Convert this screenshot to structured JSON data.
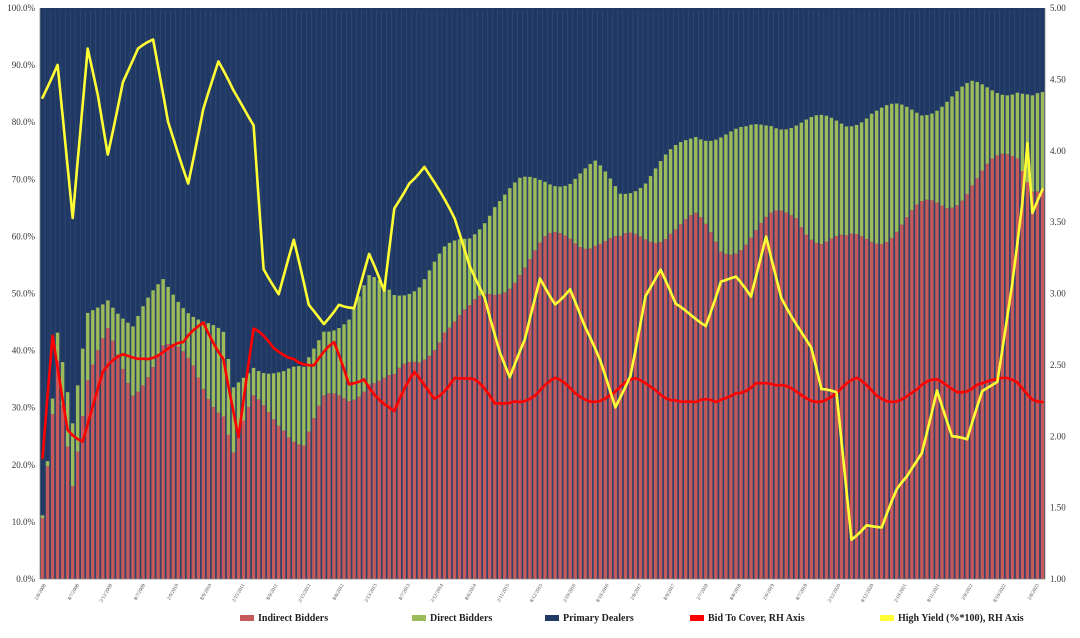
{
  "chart_data": {
    "type": "bar",
    "stacked": true,
    "percent_stacked": true,
    "grid": false,
    "legend_position": "bottom",
    "left_axis": {
      "ylim": [
        0,
        100
      ],
      "ticks": [
        "0.0%",
        "10.0%",
        "20.0%",
        "30.0%",
        "40.0%",
        "50.0%",
        "60.0%",
        "70.0%",
        "80.0%",
        "90.0%",
        "100.0%"
      ]
    },
    "right_axis": {
      "ylim": [
        1.0,
        5.0
      ],
      "ticks": [
        "1.00",
        "1.50",
        "2.00",
        "2.50",
        "3.00",
        "3.50",
        "4.00",
        "4.50",
        "5.00"
      ]
    },
    "x_tick_labels": [
      "2/8/2008",
      "8/7/2008",
      "2/12/2009",
      "8/7/2009",
      "2/9/2010",
      "8/9/2010",
      "2/15/2011",
      "8/9/2011",
      "2/15/2012",
      "8/8/2012",
      "2/13/2013",
      "8/7/2013",
      "2/12/2014",
      "8/6/2014",
      "2/11/2015",
      "8/12/2015",
      "2/10/2016",
      "8/10/2016",
      "2/8/2017",
      "8/9/2017",
      "2/7/2018",
      "8/8/2018",
      "2/6/2019",
      "8/7/2019",
      "2/12/2020",
      "8/12/2020",
      "2/10/2021",
      "8/11/2021",
      "2/9/2022",
      "8/10/2022",
      "2/8/2023"
    ],
    "series": [
      {
        "name": "Indirect Bidders",
        "type": "bar",
        "axis": "left",
        "color": "#c65a5a",
        "anchors": [
          [
            0,
            10
          ],
          [
            3,
            40
          ],
          [
            6,
            18
          ],
          [
            9,
            34
          ],
          [
            13,
            42
          ],
          [
            18,
            34
          ],
          [
            24,
            40
          ],
          [
            30,
            37
          ],
          [
            36,
            30
          ],
          [
            38,
            22
          ],
          [
            42,
            30
          ],
          [
            48,
            28
          ],
          [
            52,
            24
          ],
          [
            56,
            30
          ],
          [
            61,
            32
          ],
          [
            65,
            36
          ],
          [
            70,
            34
          ],
          [
            75,
            38
          ],
          [
            80,
            45
          ],
          [
            85,
            46
          ],
          [
            90,
            50
          ],
          [
            95,
            55
          ],
          [
            100,
            58
          ],
          [
            105,
            60
          ],
          [
            110,
            60
          ],
          [
            115,
            58
          ],
          [
            120,
            60
          ],
          [
            125,
            62
          ],
          [
            130,
            62
          ],
          [
            135,
            58
          ],
          [
            140,
            60
          ],
          [
            145,
            62
          ],
          [
            150,
            64
          ],
          [
            155,
            60
          ],
          [
            160,
            58
          ],
          [
            165,
            60
          ],
          [
            170,
            62
          ],
          [
            175,
            64
          ],
          [
            180,
            66
          ],
          [
            185,
            70
          ],
          [
            190,
            72
          ],
          [
            194,
            74
          ],
          [
            197,
            70
          ]
        ]
      },
      {
        "name": "Direct Bidders",
        "type": "bar",
        "axis": "left",
        "color": "#9cbb5a",
        "anchors": [
          [
            0,
            1
          ],
          [
            2,
            2
          ],
          [
            3,
            3
          ],
          [
            6,
            8
          ],
          [
            9,
            12
          ],
          [
            13,
            8
          ],
          [
            18,
            10
          ],
          [
            24,
            12
          ],
          [
            30,
            10
          ],
          [
            36,
            12
          ],
          [
            42,
            8
          ],
          [
            48,
            8
          ],
          [
            52,
            12
          ],
          [
            56,
            14
          ],
          [
            61,
            14
          ],
          [
            65,
            16
          ],
          [
            70,
            16
          ],
          [
            75,
            14
          ],
          [
            80,
            12
          ],
          [
            85,
            14
          ],
          [
            90,
            16
          ],
          [
            95,
            14
          ],
          [
            100,
            12
          ],
          [
            105,
            10
          ],
          [
            110,
            12
          ],
          [
            115,
            10
          ],
          [
            120,
            10
          ],
          [
            125,
            12
          ],
          [
            130,
            16
          ],
          [
            135,
            20
          ],
          [
            140,
            18
          ],
          [
            145,
            18
          ],
          [
            150,
            16
          ],
          [
            155,
            20
          ],
          [
            160,
            22
          ],
          [
            165,
            22
          ],
          [
            170,
            20
          ],
          [
            175,
            18
          ],
          [
            180,
            18
          ],
          [
            185,
            16
          ],
          [
            190,
            14
          ],
          [
            194,
            12
          ],
          [
            197,
            14
          ]
        ]
      },
      {
        "name": "Primary Dealers",
        "type": "bar",
        "axis": "left",
        "color": "#1f3864"
      },
      {
        "name": "Bid To Cover, RH Axis",
        "type": "line",
        "axis": "right",
        "color": "#ff0000",
        "anchors": [
          [
            0,
            1.8
          ],
          [
            2,
            2.7
          ],
          [
            5,
            2.1
          ],
          [
            8,
            2.0
          ],
          [
            12,
            2.4
          ],
          [
            16,
            2.55
          ],
          [
            20,
            2.6
          ],
          [
            24,
            2.6
          ],
          [
            28,
            2.6
          ],
          [
            32,
            2.8
          ],
          [
            36,
            2.6
          ],
          [
            39,
            2.0
          ],
          [
            42,
            2.7
          ],
          [
            46,
            2.6
          ],
          [
            50,
            2.6
          ],
          [
            54,
            2.5
          ],
          [
            58,
            2.6
          ],
          [
            61,
            2.35
          ],
          [
            64,
            2.45
          ],
          [
            67,
            2.3
          ],
          [
            70,
            2.15
          ],
          [
            74,
            2.4
          ],
          [
            78,
            2.3
          ],
          [
            82,
            2.45
          ],
          [
            86,
            2.35
          ],
          [
            90,
            2.2
          ],
          [
            94,
            2.3
          ],
          [
            98,
            2.3
          ],
          [
            102,
            2.35
          ],
          [
            106,
            2.3
          ],
          [
            110,
            2.3
          ],
          [
            114,
            2.3
          ],
          [
            118,
            2.35
          ],
          [
            122,
            2.35
          ],
          [
            126,
            2.3
          ],
          [
            130,
            2.2
          ],
          [
            134,
            2.2
          ],
          [
            138,
            2.35
          ],
          [
            142,
            2.4
          ],
          [
            146,
            2.3
          ],
          [
            150,
            2.3
          ],
          [
            154,
            2.3
          ],
          [
            158,
            2.3
          ],
          [
            162,
            2.35
          ],
          [
            166,
            2.3
          ],
          [
            170,
            2.3
          ],
          [
            174,
            2.3
          ],
          [
            178,
            2.35
          ],
          [
            182,
            2.35
          ],
          [
            186,
            2.4
          ],
          [
            190,
            2.35
          ],
          [
            194,
            2.35
          ],
          [
            197,
            2.3
          ]
        ]
      },
      {
        "name": "High Yield (%*100), RH Axis",
        "type": "line",
        "axis": "right",
        "color": "#ffff33",
        "anchors": [
          [
            0,
            4.4
          ],
          [
            3,
            4.6
          ],
          [
            6,
            3.5
          ],
          [
            9,
            4.7
          ],
          [
            11,
            4.4
          ],
          [
            13,
            4.0
          ],
          [
            16,
            4.5
          ],
          [
            19,
            4.7
          ],
          [
            22,
            4.75
          ],
          [
            25,
            4.2
          ],
          [
            29,
            3.8
          ],
          [
            32,
            4.3
          ],
          [
            35,
            4.6
          ],
          [
            38,
            4.4
          ],
          [
            42,
            4.2
          ],
          [
            44,
            3.2
          ],
          [
            47,
            3.0
          ],
          [
            50,
            3.35
          ],
          [
            53,
            2.9
          ],
          [
            56,
            2.8
          ],
          [
            59,
            2.95
          ],
          [
            62,
            2.9
          ],
          [
            65,
            3.25
          ],
          [
            68,
            3.0
          ],
          [
            70,
            3.6
          ],
          [
            73,
            3.8
          ],
          [
            76,
            3.9
          ],
          [
            79,
            3.7
          ],
          [
            82,
            3.5
          ],
          [
            85,
            3.2
          ],
          [
            88,
            3.0
          ],
          [
            91,
            2.6
          ],
          [
            93,
            2.4
          ],
          [
            96,
            2.65
          ],
          [
            99,
            3.1
          ],
          [
            102,
            2.95
          ],
          [
            105,
            3.05
          ],
          [
            108,
            2.75
          ],
          [
            111,
            2.5
          ],
          [
            114,
            2.2
          ],
          [
            117,
            2.45
          ],
          [
            120,
            3.0
          ],
          [
            123,
            3.15
          ],
          [
            126,
            2.9
          ],
          [
            129,
            2.85
          ],
          [
            132,
            2.8
          ],
          [
            135,
            3.1
          ],
          [
            138,
            3.1
          ],
          [
            141,
            2.95
          ],
          [
            144,
            3.4
          ],
          [
            147,
            3.0
          ],
          [
            150,
            2.8
          ],
          [
            153,
            2.6
          ],
          [
            155,
            2.3
          ],
          [
            158,
            2.3
          ],
          [
            161,
            1.3
          ],
          [
            164,
            1.4
          ],
          [
            167,
            1.35
          ],
          [
            170,
            1.6
          ],
          [
            172,
            1.7
          ],
          [
            175,
            1.9
          ],
          [
            178,
            2.35
          ],
          [
            181,
            2.0
          ],
          [
            184,
            1.95
          ],
          [
            187,
            2.3
          ],
          [
            190,
            2.4
          ],
          [
            193,
            3.1
          ],
          [
            195,
            3.65
          ],
          [
            196,
            4.05
          ],
          [
            197,
            3.55
          ],
          [
            199,
            3.7
          ]
        ]
      }
    ]
  },
  "legend": {
    "items": [
      {
        "key": "indirect",
        "label": "Indirect Bidders",
        "color": "#c65a5a"
      },
      {
        "key": "direct",
        "label": "Direct Bidders",
        "color": "#9cbb5a"
      },
      {
        "key": "primary",
        "label": "Primary Dealers",
        "color": "#1f3864"
      },
      {
        "key": "btc",
        "label": "Bid To Cover, RH Axis",
        "color": "#ff0000"
      },
      {
        "key": "hy",
        "label": "High Yield (%*100), RH Axis",
        "color": "#ffff33"
      }
    ]
  }
}
